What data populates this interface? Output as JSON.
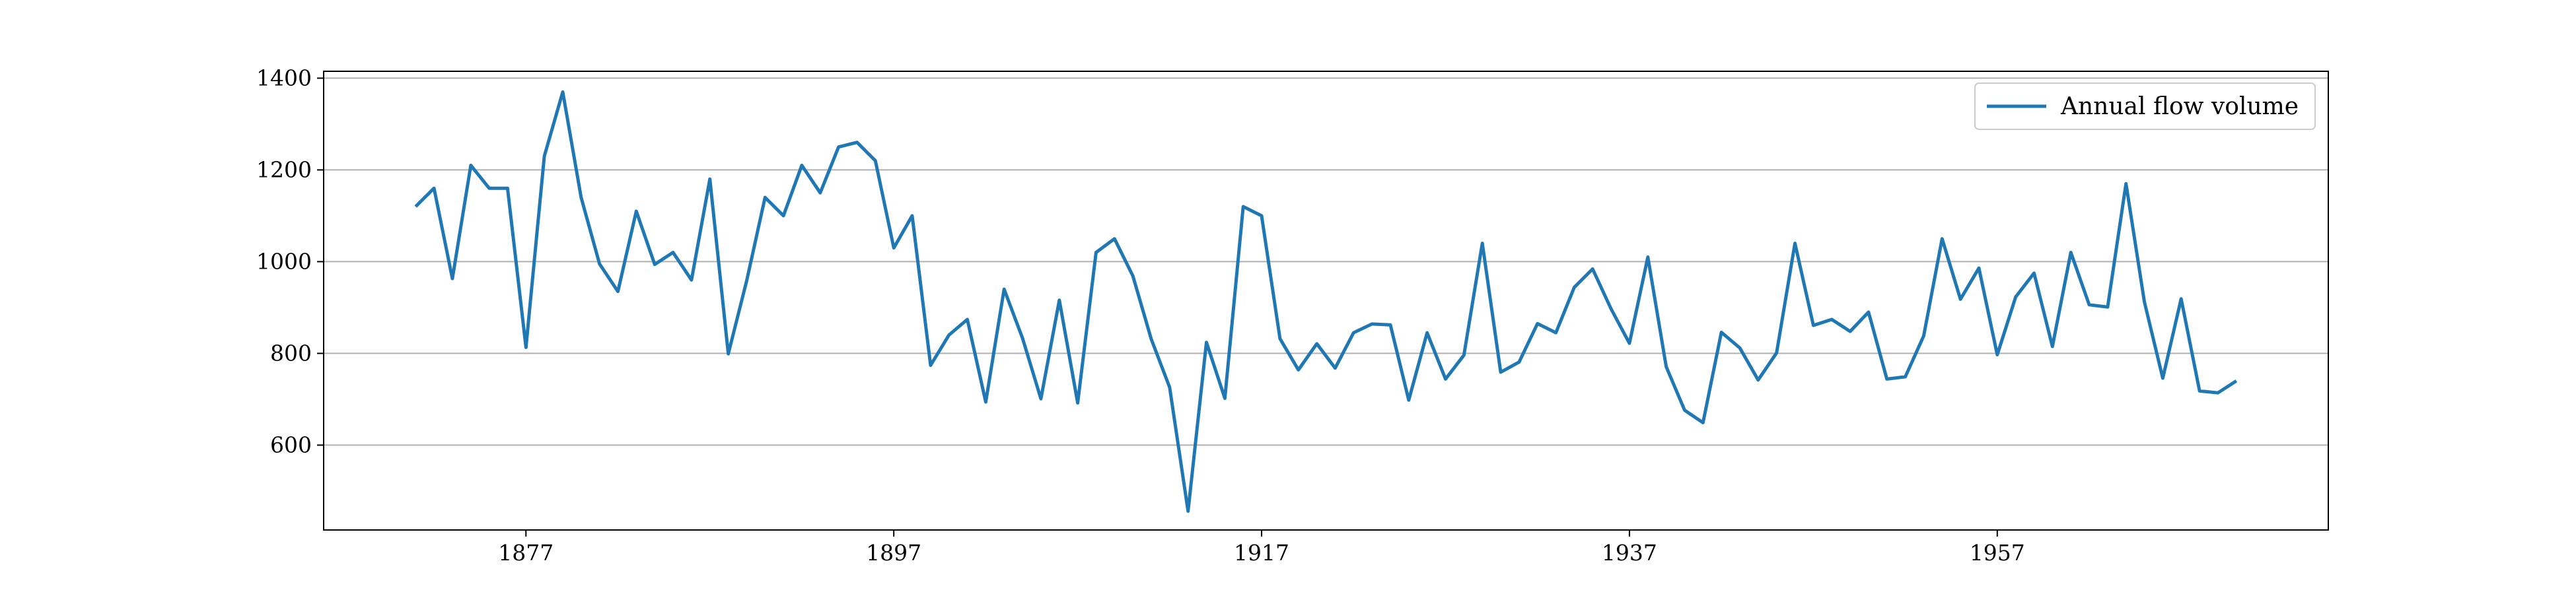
{
  "chart_data": {
    "type": "line",
    "title": "",
    "xlabel": "",
    "ylabel": "",
    "xlim": [
      1866,
      1975
    ],
    "ylim": [
      415,
      1415
    ],
    "xticks": [
      1877,
      1897,
      1917,
      1937,
      1957
    ],
    "yticks": [
      600,
      800,
      1000,
      1200,
      1400
    ],
    "grid": "horizontal",
    "legend_position": "top-right",
    "colors": {
      "series": "#1f77b4",
      "grid": "#b0b0b0",
      "axes": "#000000"
    },
    "series": [
      {
        "name": "Annual flow volume",
        "x": [
          1871,
          1872,
          1873,
          1874,
          1875,
          1876,
          1877,
          1878,
          1879,
          1880,
          1881,
          1882,
          1883,
          1884,
          1885,
          1886,
          1887,
          1888,
          1889,
          1890,
          1891,
          1892,
          1893,
          1894,
          1895,
          1896,
          1897,
          1898,
          1899,
          1900,
          1901,
          1902,
          1903,
          1904,
          1905,
          1906,
          1907,
          1908,
          1909,
          1910,
          1911,
          1912,
          1913,
          1914,
          1915,
          1916,
          1917,
          1918,
          1919,
          1920,
          1921,
          1922,
          1923,
          1924,
          1925,
          1926,
          1927,
          1928,
          1929,
          1930,
          1931,
          1932,
          1933,
          1934,
          1935,
          1936,
          1937,
          1938,
          1939,
          1940,
          1941,
          1942,
          1943,
          1944,
          1945,
          1946,
          1947,
          1948,
          1949,
          1950,
          1951,
          1952,
          1953,
          1954,
          1955,
          1956,
          1957,
          1958,
          1959,
          1960,
          1961,
          1962,
          1963,
          1964,
          1965,
          1966,
          1967,
          1968,
          1969,
          1970
        ],
        "y": [
          1120,
          1160,
          963,
          1210,
          1160,
          1160,
          813,
          1230,
          1370,
          1140,
          995,
          935,
          1110,
          994,
          1020,
          960,
          1180,
          799,
          958,
          1140,
          1100,
          1210,
          1150,
          1250,
          1260,
          1220,
          1030,
          1100,
          774,
          840,
          874,
          694,
          940,
          833,
          701,
          916,
          692,
          1020,
          1050,
          969,
          831,
          726,
          456,
          824,
          702,
          1120,
          1100,
          832,
          764,
          821,
          768,
          845,
          864,
          862,
          698,
          845,
          744,
          796,
          1040,
          759,
          781,
          865,
          845,
          944,
          984,
          897,
          822,
          1010,
          771,
          676,
          649,
          846,
          812,
          742,
          801,
          1040,
          861,
          874,
          848,
          890,
          744,
          749,
          838,
          1050,
          918,
          986,
          797,
          923,
          975,
          815,
          1020,
          906,
          901,
          1170,
          912,
          746,
          919,
          718,
          714,
          740
        ]
      }
    ]
  }
}
